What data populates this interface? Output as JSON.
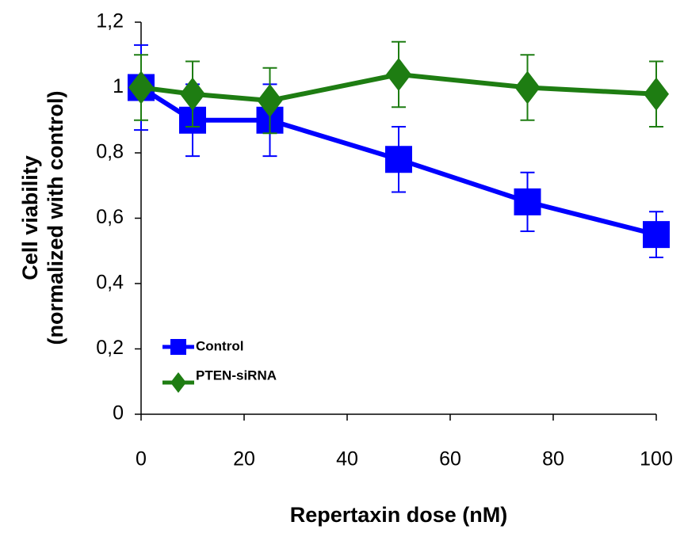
{
  "chart_data": {
    "type": "line",
    "xlabel": "Repertaxin dose (nM)",
    "ylabel": [
      "Cell viability",
      "(normalized with control)"
    ],
    "xlim": [
      0,
      100
    ],
    "xticks": [
      0,
      20,
      40,
      60,
      80,
      100
    ],
    "ylim": [
      0,
      1.2
    ],
    "yticks": [
      0,
      {
        "value": 0.2,
        "label": "0,2"
      },
      {
        "value": 0.4,
        "label": "0,4"
      },
      {
        "value": 0.6,
        "label": "0,6"
      },
      {
        "value": 0.8,
        "label": "0,8"
      },
      1,
      {
        "value": 1.2,
        "label": "1,2"
      }
    ],
    "grid": false,
    "legend": "lower left",
    "series": [
      {
        "name": "Control",
        "color": "#0000ff",
        "marker": "square",
        "x": [
          0,
          10,
          25,
          50,
          75,
          100
        ],
        "values": [
          1.0,
          0.9,
          0.9,
          0.78,
          0.65,
          0.55
        ],
        "errors": [
          0.13,
          0.11,
          0.11,
          0.1,
          0.09,
          0.07
        ]
      },
      {
        "name": "PTEN-siRNA",
        "color": "#1e7d12",
        "marker": "diamond",
        "x": [
          0,
          10,
          25,
          50,
          75,
          100
        ],
        "values": [
          1.0,
          0.98,
          0.96,
          1.04,
          1.0,
          0.98
        ],
        "errors": [
          0.1,
          0.1,
          0.1,
          0.1,
          0.1,
          0.1
        ]
      }
    ]
  }
}
